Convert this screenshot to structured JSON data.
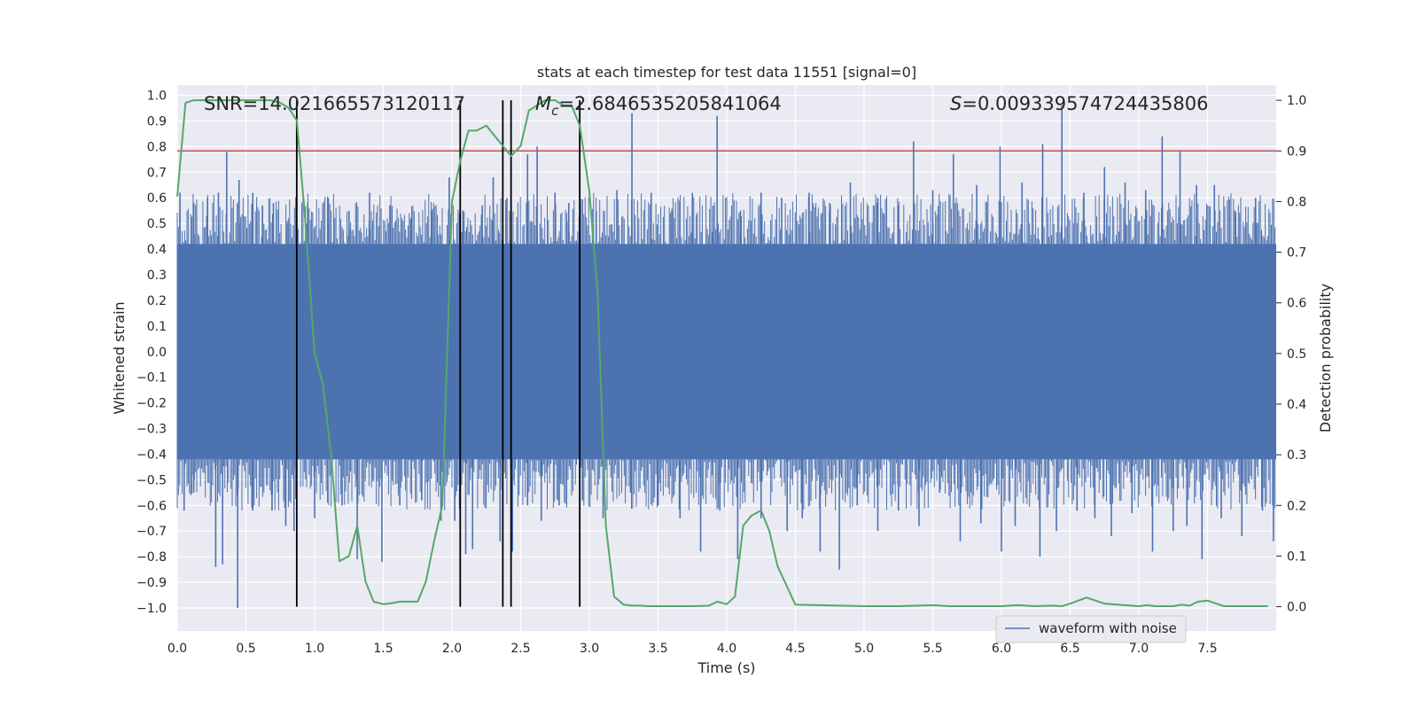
{
  "chart_data": {
    "type": "line",
    "title": "stats at each timestep for test data 11551 [signal=0]",
    "xlabel": "Time (s)",
    "ylabel_left": "Whitened strain",
    "ylabel_right": "Detection probability",
    "xlim": [
      0.0,
      8.0
    ],
    "ylim_left": [
      -1.09,
      1.04
    ],
    "ylim_right": [
      -0.048,
      1.03
    ],
    "x_ticks": [
      "0.0",
      "0.5",
      "1.0",
      "1.5",
      "2.0",
      "2.5",
      "3.0",
      "3.5",
      "4.0",
      "4.5",
      "5.0",
      "5.5",
      "6.0",
      "6.5",
      "7.0",
      "7.5"
    ],
    "y_ticks_left": [
      "1.0",
      "0.9",
      "0.8",
      "0.7",
      "0.6",
      "0.5",
      "0.4",
      "0.3",
      "0.2",
      "0.1",
      "0.0",
      "-0.1",
      "-0.2",
      "-0.3",
      "-0.4",
      "-0.5",
      "-0.6",
      "-0.7",
      "-0.8",
      "-0.9",
      "-1.0"
    ],
    "y_ticks_right": [
      "1.0",
      "0.9",
      "0.8",
      "0.7",
      "0.6",
      "0.5",
      "0.4",
      "0.3",
      "0.2",
      "0.1",
      "0.0"
    ],
    "annotations": {
      "snr": "SNR=14.021665573120117",
      "mc_symbol": "M",
      "mc_subscript": "c",
      "mc_value": "=2.6846535205841064",
      "s_symbol": "S",
      "s_value": "=0.009339574724435806"
    },
    "threshold": {
      "value": 0.9,
      "color": "#c44e52"
    },
    "vlines": [
      0.87,
      2.06,
      2.37,
      2.43,
      2.93
    ],
    "legend": {
      "label": "waveform with noise",
      "location": "lower-right"
    },
    "series": [
      {
        "name": "waveform with noise",
        "axis": "left",
        "color": "#4c72b0",
        "core_band": [
          -0.42,
          0.42
        ],
        "peaks": [
          [
            0.02,
            0.62
          ],
          [
            0.12,
            0.58
          ],
          [
            0.22,
            0.6
          ],
          [
            0.3,
            0.62
          ],
          [
            0.36,
            0.78
          ],
          [
            0.45,
            0.67
          ],
          [
            0.55,
            0.62
          ],
          [
            0.62,
            0.57
          ],
          [
            0.7,
            0.58
          ],
          [
            0.8,
            0.5
          ],
          [
            0.95,
            0.58
          ],
          [
            1.1,
            0.6
          ],
          [
            1.25,
            0.55
          ],
          [
            1.4,
            0.62
          ],
          [
            1.55,
            0.57
          ],
          [
            1.7,
            0.52
          ],
          [
            1.85,
            0.55
          ],
          [
            1.98,
            0.68
          ],
          [
            2.08,
            0.55
          ],
          [
            2.22,
            0.57
          ],
          [
            2.3,
            0.68
          ],
          [
            2.4,
            0.6
          ],
          [
            2.55,
            0.77
          ],
          [
            2.62,
            0.8
          ],
          [
            2.75,
            0.62
          ],
          [
            2.85,
            0.58
          ],
          [
            3.05,
            0.55
          ],
          [
            3.2,
            0.63
          ],
          [
            3.31,
            0.93
          ],
          [
            3.45,
            0.62
          ],
          [
            3.6,
            0.55
          ],
          [
            3.75,
            0.62
          ],
          [
            3.9,
            0.57
          ],
          [
            3.93,
            0.92
          ],
          [
            4.1,
            0.55
          ],
          [
            4.25,
            0.62
          ],
          [
            4.4,
            0.6
          ],
          [
            4.6,
            0.62
          ],
          [
            4.75,
            0.58
          ],
          [
            4.9,
            0.66
          ],
          [
            5.1,
            0.6
          ],
          [
            5.25,
            0.57
          ],
          [
            5.36,
            0.82
          ],
          [
            5.5,
            0.63
          ],
          [
            5.65,
            0.77
          ],
          [
            5.82,
            0.65
          ],
          [
            5.99,
            0.8
          ],
          [
            6.15,
            0.66
          ],
          [
            6.3,
            0.81
          ],
          [
            6.44,
            0.96
          ],
          [
            6.6,
            0.62
          ],
          [
            6.75,
            0.72
          ],
          [
            6.9,
            0.66
          ],
          [
            7.05,
            0.63
          ],
          [
            7.17,
            0.84
          ],
          [
            7.3,
            0.78
          ],
          [
            7.42,
            0.65
          ],
          [
            7.55,
            0.65
          ],
          [
            7.7,
            0.55
          ],
          [
            7.85,
            0.6
          ]
        ],
        "troughs": [
          [
            0.05,
            -0.62
          ],
          [
            0.12,
            -0.55
          ],
          [
            0.28,
            -0.84
          ],
          [
            0.33,
            -0.83
          ],
          [
            0.44,
            -1.0
          ],
          [
            0.55,
            -0.62
          ],
          [
            0.69,
            -0.62
          ],
          [
            0.79,
            -0.68
          ],
          [
            0.85,
            -0.7
          ],
          [
            1.0,
            -0.65
          ],
          [
            1.2,
            -0.6
          ],
          [
            1.31,
            -0.81
          ],
          [
            1.49,
            -0.82
          ],
          [
            1.62,
            -0.6
          ],
          [
            1.78,
            -0.58
          ],
          [
            1.92,
            -0.66
          ],
          [
            2.02,
            -0.66
          ],
          [
            2.1,
            -0.79
          ],
          [
            2.15,
            -0.77
          ],
          [
            2.35,
            -0.74
          ],
          [
            2.44,
            -0.78
          ],
          [
            2.55,
            -0.6
          ],
          [
            2.65,
            -0.66
          ],
          [
            2.78,
            -0.6
          ],
          [
            2.95,
            -0.58
          ],
          [
            3.1,
            -0.65
          ],
          [
            3.3,
            -0.55
          ],
          [
            3.5,
            -0.6
          ],
          [
            3.66,
            -0.65
          ],
          [
            3.81,
            -0.78
          ],
          [
            3.95,
            -0.62
          ],
          [
            4.08,
            -0.81
          ],
          [
            4.25,
            -0.65
          ],
          [
            4.44,
            -0.7
          ],
          [
            4.55,
            -0.65
          ],
          [
            4.68,
            -0.78
          ],
          [
            4.82,
            -0.85
          ],
          [
            4.95,
            -0.6
          ],
          [
            5.1,
            -0.7
          ],
          [
            5.25,
            -0.62
          ],
          [
            5.4,
            -0.68
          ],
          [
            5.55,
            -0.55
          ],
          [
            5.7,
            -0.74
          ],
          [
            5.85,
            -0.67
          ],
          [
            6.0,
            -0.78
          ],
          [
            6.1,
            -0.68
          ],
          [
            6.28,
            -0.8
          ],
          [
            6.4,
            -0.7
          ],
          [
            6.55,
            -0.62
          ],
          [
            6.68,
            -0.65
          ],
          [
            6.8,
            -0.72
          ],
          [
            6.95,
            -0.63
          ],
          [
            7.1,
            -0.78
          ],
          [
            7.25,
            -0.7
          ],
          [
            7.35,
            -0.68
          ],
          [
            7.46,
            -0.81
          ],
          [
            7.6,
            -0.65
          ],
          [
            7.75,
            -0.72
          ],
          [
            7.9,
            -0.62
          ],
          [
            7.98,
            -0.74
          ]
        ]
      },
      {
        "name": "detection probability",
        "axis": "right",
        "color": "#55a868",
        "x": [
          0.0,
          0.06,
          0.12,
          0.18,
          0.25,
          0.31,
          0.37,
          0.43,
          0.5,
          0.56,
          0.62,
          0.68,
          0.75,
          0.81,
          0.87,
          0.93,
          1.0,
          1.06,
          1.12,
          1.18,
          1.25,
          1.31,
          1.37,
          1.43,
          1.5,
          1.56,
          1.62,
          1.68,
          1.75,
          1.81,
          1.87,
          1.93,
          2.0,
          2.06,
          2.12,
          2.18,
          2.25,
          2.31,
          2.37,
          2.43,
          2.5,
          2.56,
          2.62,
          2.68,
          2.75,
          2.81,
          2.87,
          2.93,
          3.0,
          3.06,
          3.12,
          3.18,
          3.25,
          3.31,
          3.37,
          3.43,
          3.5,
          3.75,
          3.87,
          3.93,
          4.0,
          4.06,
          4.12,
          4.18,
          4.25,
          4.31,
          4.37,
          4.5,
          5.0,
          5.25,
          5.5,
          5.62,
          5.75,
          6.0,
          6.12,
          6.25,
          6.37,
          6.44,
          6.5,
          6.56,
          6.62,
          6.75,
          7.0,
          7.06,
          7.12,
          7.25,
          7.31,
          7.37,
          7.43,
          7.5,
          7.62,
          7.94
        ],
        "y": [
          0.81,
          0.995,
          1.0,
          1.0,
          1.0,
          1.0,
          1.0,
          1.0,
          1.0,
          1.0,
          1.0,
          1.0,
          0.995,
          0.985,
          0.96,
          0.77,
          0.5,
          0.44,
          0.3,
          0.09,
          0.1,
          0.16,
          0.05,
          0.01,
          0.005,
          0.007,
          0.01,
          0.01,
          0.01,
          0.05,
          0.13,
          0.2,
          0.8,
          0.88,
          0.94,
          0.94,
          0.95,
          0.93,
          0.91,
          0.89,
          0.91,
          0.98,
          0.99,
          1.0,
          1.0,
          0.99,
          0.99,
          0.95,
          0.82,
          0.62,
          0.16,
          0.02,
          0.004,
          0.002,
          0.002,
          0.001,
          0.001,
          0.001,
          0.002,
          0.01,
          0.005,
          0.02,
          0.16,
          0.18,
          0.19,
          0.15,
          0.08,
          0.004,
          0.001,
          0.001,
          0.003,
          0.001,
          0.001,
          0.001,
          0.003,
          0.001,
          0.002,
          0.001,
          0.006,
          0.012,
          0.018,
          0.006,
          0.001,
          0.003,
          0.001,
          0.001,
          0.004,
          0.002,
          0.01,
          0.012,
          0.001,
          0.001
        ]
      }
    ]
  }
}
